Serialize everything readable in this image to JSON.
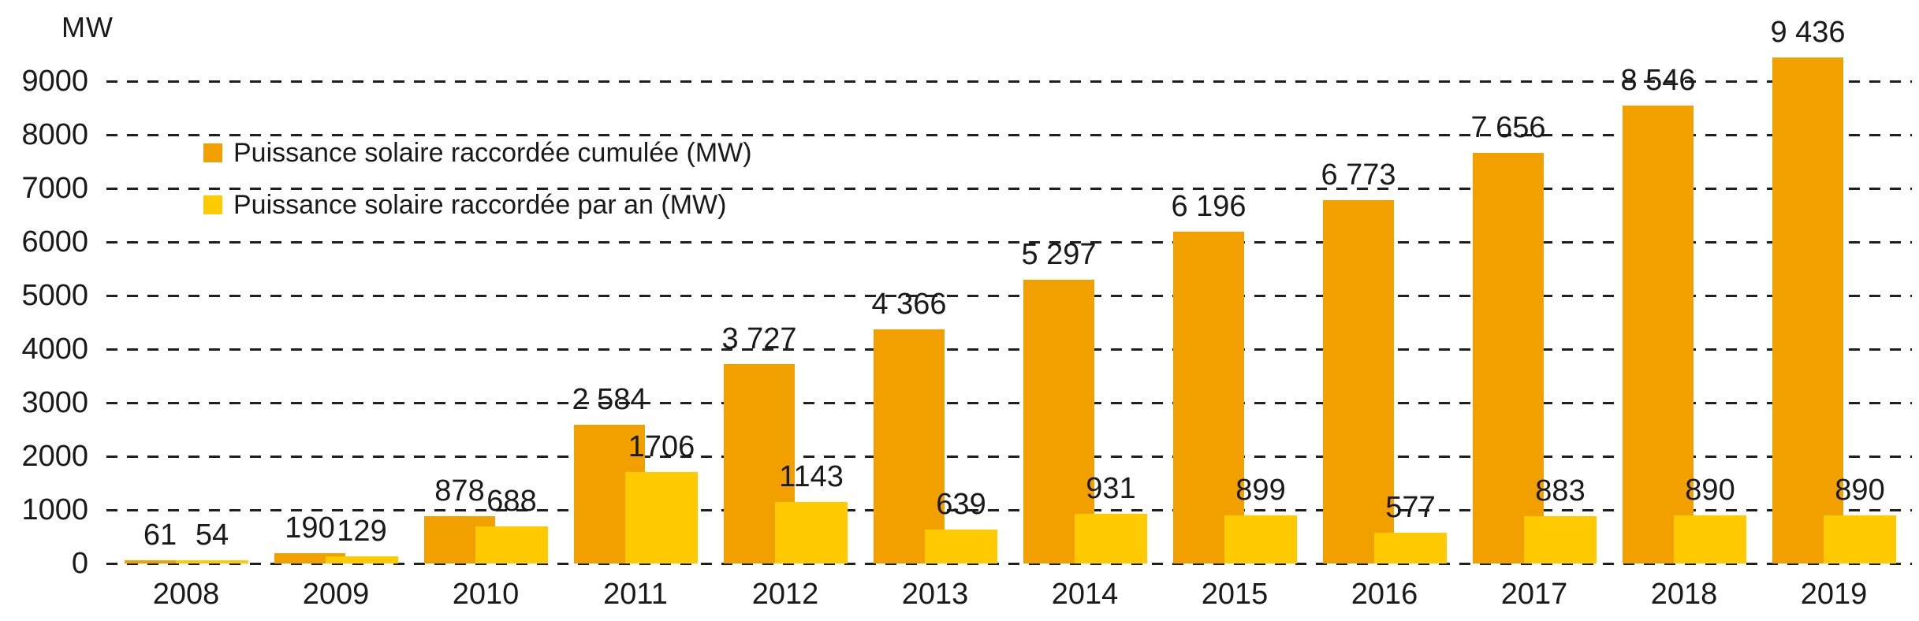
{
  "chart_data": {
    "type": "bar",
    "title": "",
    "unit_label": "MW",
    "xlabel": "",
    "ylabel": "MW",
    "categories": [
      "2008",
      "2009",
      "2010",
      "2011",
      "2012",
      "2013",
      "2014",
      "2015",
      "2016",
      "2017",
      "2018",
      "2019"
    ],
    "series": [
      {
        "name": "Puissance solaire raccordée cumulée (MW)",
        "color": "#F2A000",
        "values": [
          61,
          190,
          878,
          2584,
          3727,
          4366,
          5297,
          6196,
          6773,
          7656,
          8546,
          9436
        ],
        "labels": [
          "61",
          "190",
          "878",
          "2 584",
          "3 727",
          "4 366",
          "5 297",
          "6 196",
          "6 773",
          "7 656",
          "8 546",
          "9 436"
        ]
      },
      {
        "name": "Puissance solaire raccordée par an (MW)",
        "color": "#FFCB00",
        "values": [
          54,
          129,
          688,
          1706,
          1143,
          639,
          931,
          899,
          577,
          883,
          890,
          890
        ],
        "labels": [
          "54",
          "129",
          "688",
          "1706",
          "1143",
          "639",
          "931",
          "899",
          "577",
          "883",
          "890",
          "890"
        ]
      }
    ],
    "y_ticks": [
      0,
      1000,
      2000,
      3000,
      4000,
      5000,
      6000,
      7000,
      8000,
      9000
    ],
    "ylim": [
      0,
      9700
    ],
    "grid": "horizontal-dashed",
    "grid_color": "#1f1f1f",
    "legend_position": "top-left-inside"
  },
  "legend": {
    "items": [
      {
        "label": "Puissance solaire raccordée cumulée (MW)",
        "color": "#F2A000"
      },
      {
        "label": "Puissance solaire raccordée par an (MW)",
        "color": "#FFCB00"
      }
    ]
  }
}
